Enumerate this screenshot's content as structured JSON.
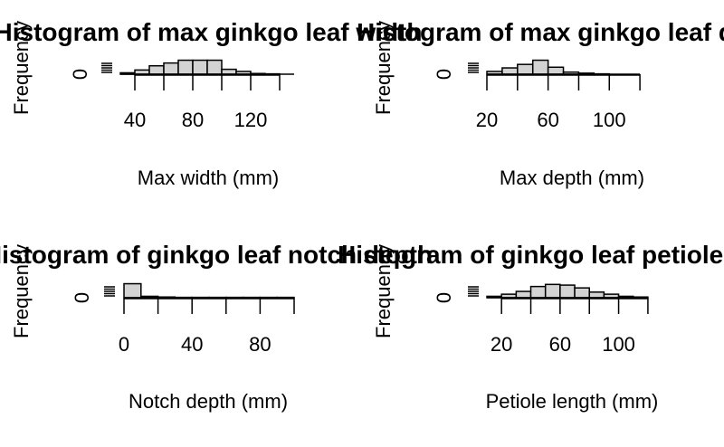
{
  "colors": {
    "bar_fill": "#d3d3d3",
    "bar_stroke": "#000000",
    "background": "#ffffff"
  },
  "chart_data": [
    {
      "type": "bar",
      "title": "Histogram of max ginkgo leaf width",
      "xlabel": "Max width (mm)",
      "ylabel": "Frequency",
      "x_ticks": [
        40,
        80,
        120
      ],
      "y_ticks": [
        0
      ],
      "bin_edges": [
        30,
        40,
        50,
        60,
        70,
        80,
        90,
        100,
        110,
        120,
        130,
        140,
        150
      ],
      "values": [
        0.2,
        0.6,
        1.2,
        1.6,
        2.0,
        2.0,
        2.0,
        0.7,
        0.4,
        0.1,
        0.05,
        0.0
      ],
      "ylim": [
        0,
        2.2
      ]
    },
    {
      "type": "bar",
      "title": "Histogram of max ginkgo leaf depth",
      "xlabel": "Max depth (mm)",
      "ylabel": "Frequency",
      "x_ticks": [
        20,
        60,
        100
      ],
      "y_ticks": [
        0
      ],
      "bin_edges": [
        20,
        30,
        40,
        50,
        60,
        70,
        80,
        90,
        100,
        110,
        120
      ],
      "values": [
        0.4,
        0.9,
        1.4,
        2.0,
        1.0,
        0.3,
        0.15,
        0.05,
        0.0,
        0.0
      ],
      "ylim": [
        0,
        2.2
      ]
    },
    {
      "type": "bar",
      "title": "Histogram of ginkgo leaf notch depth",
      "xlabel": "Notch depth (mm)",
      "ylabel": "Frequency",
      "x_ticks": [
        0,
        40,
        80
      ],
      "y_ticks": [
        0
      ],
      "bin_edges": [
        0,
        10,
        20,
        30,
        40,
        50,
        60,
        70,
        80,
        90,
        100
      ],
      "values": [
        2.0,
        0.2,
        0.1,
        0.05,
        0.05,
        0.05,
        0.05,
        0.05,
        0.05,
        0.05
      ],
      "ylim": [
        0,
        2.2
      ]
    },
    {
      "type": "bar",
      "title": "Histogram of ginkgo leaf petiole length",
      "xlabel": "Petiole length (mm)",
      "ylabel": "Frequency",
      "x_ticks": [
        20,
        60,
        100
      ],
      "y_ticks": [
        0
      ],
      "bin_edges": [
        10,
        20,
        30,
        40,
        50,
        60,
        70,
        80,
        90,
        100,
        110,
        120
      ],
      "values": [
        0.2,
        0.5,
        0.9,
        1.6,
        1.9,
        1.8,
        1.4,
        0.8,
        0.5,
        0.2,
        0.1
      ],
      "ylim": [
        0,
        2.2
      ]
    }
  ]
}
